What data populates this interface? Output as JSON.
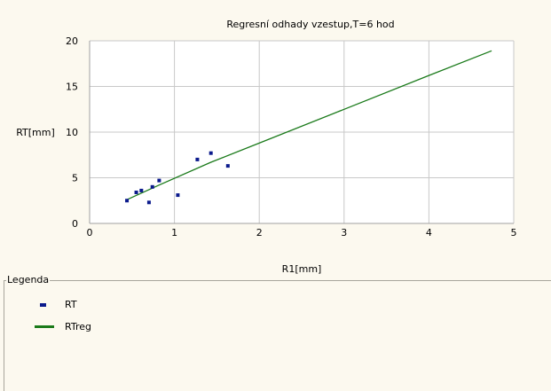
{
  "chart_data": {
    "type": "scatter",
    "title": "Regresní odhady vzestup,T=6 hod",
    "xlabel": "R1[mm]",
    "ylabel": "RT[mm]",
    "xlim": [
      0,
      5
    ],
    "ylim": [
      0,
      20
    ],
    "x_ticks": [
      "0",
      "1",
      "2",
      "3",
      "4",
      "5"
    ],
    "y_ticks": [
      "0",
      "5",
      "10",
      "15",
      "20"
    ],
    "grid": true,
    "series": [
      {
        "name": "RT",
        "kind": "scatter",
        "color": "#0b1a8c",
        "points": [
          [
            0.44,
            2.5
          ],
          [
            0.55,
            3.4
          ],
          [
            0.61,
            3.6
          ],
          [
            0.7,
            2.3
          ],
          [
            0.74,
            4.0
          ],
          [
            0.82,
            4.7
          ],
          [
            1.04,
            3.1
          ],
          [
            1.27,
            7.0
          ],
          [
            1.43,
            7.7
          ],
          [
            1.63,
            6.3
          ]
        ]
      },
      {
        "name": "RTreg",
        "kind": "line",
        "color": "#1a7a1a",
        "points": [
          [
            0.44,
            2.6
          ],
          [
            0.82,
            4.2
          ],
          [
            1.43,
            6.7
          ],
          [
            2.0,
            8.8
          ],
          [
            3.0,
            12.5
          ],
          [
            4.0,
            16.2
          ],
          [
            4.74,
            18.9
          ]
        ]
      }
    ]
  },
  "legend": {
    "title": "Legenda",
    "items": [
      {
        "label": "RT",
        "swatch": "marker"
      },
      {
        "label": "RTreg",
        "swatch": "line"
      }
    ]
  }
}
